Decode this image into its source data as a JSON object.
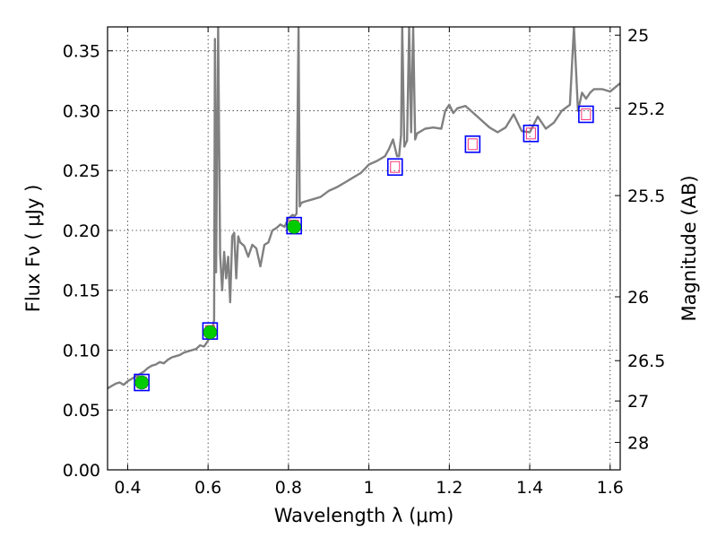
{
  "chart_data": {
    "type": "line",
    "xlabel": "Wavelength  λ (μm)",
    "ylabel": "Flux  Fν  ( μJy )",
    "y2label": "Magnitude (AB)",
    "xlim": [
      0.35,
      1.625
    ],
    "ylim": [
      0.0,
      0.37
    ],
    "grid": true,
    "x_ticks": [
      0.4,
      0.6,
      0.8,
      1.0,
      1.2,
      1.4,
      1.6
    ],
    "x_tick_labels": [
      "0.4",
      "0.6",
      "0.8",
      "1",
      "1.2",
      "1.4",
      "1.6"
    ],
    "y_ticks": [
      0.0,
      0.05,
      0.1,
      0.15,
      0.2,
      0.25,
      0.3,
      0.35
    ],
    "y_tick_labels": [
      "0.00",
      "0.05",
      "0.10",
      "0.15",
      "0.20",
      "0.25",
      "0.30",
      "0.35"
    ],
    "y2_ticks": [
      {
        "mag": 25,
        "label": "25"
      },
      {
        "mag": 25.2,
        "label": "25.2"
      },
      {
        "mag": 25.5,
        "label": "25.5"
      },
      {
        "mag": 26,
        "label": "26"
      },
      {
        "mag": 26.5,
        "label": "26.5"
      },
      {
        "mag": 27,
        "label": "27"
      },
      {
        "mag": 28,
        "label": "28"
      }
    ],
    "colors": {
      "spectrum": "#808080",
      "observed": "#00cc00",
      "model_box": "#0000ff",
      "model_inner": "#ff3377",
      "grid": "#000000"
    },
    "series": [
      {
        "kind": "spectrum",
        "x": [
          0.35,
          0.36,
          0.37,
          0.38,
          0.39,
          0.4,
          0.41,
          0.42,
          0.43,
          0.44,
          0.45,
          0.46,
          0.47,
          0.48,
          0.49,
          0.5,
          0.51,
          0.52,
          0.53,
          0.54,
          0.55,
          0.56,
          0.57,
          0.58,
          0.59,
          0.6,
          0.605,
          0.61,
          0.615,
          0.617,
          0.62,
          0.625,
          0.63,
          0.635,
          0.64,
          0.645,
          0.65,
          0.655,
          0.66,
          0.665,
          0.67,
          0.675,
          0.68,
          0.69,
          0.7,
          0.71,
          0.72,
          0.73,
          0.74,
          0.75,
          0.76,
          0.77,
          0.78,
          0.79,
          0.8,
          0.81,
          0.815,
          0.82,
          0.825,
          0.828,
          0.832,
          0.84,
          0.86,
          0.88,
          0.9,
          0.92,
          0.94,
          0.96,
          0.98,
          1.0,
          1.02,
          1.04,
          1.05,
          1.06,
          1.07,
          1.075,
          1.08,
          1.083,
          1.088,
          1.095,
          1.1,
          1.105,
          1.11,
          1.115,
          1.12,
          1.14,
          1.16,
          1.18,
          1.19,
          1.2,
          1.21,
          1.22,
          1.24,
          1.26,
          1.28,
          1.3,
          1.32,
          1.34,
          1.36,
          1.38,
          1.4,
          1.42,
          1.44,
          1.46,
          1.48,
          1.5,
          1.51,
          1.52,
          1.53,
          1.54,
          1.55,
          1.56,
          1.58,
          1.6,
          1.625
        ],
        "y": [
          0.068,
          0.07,
          0.072,
          0.073,
          0.071,
          0.074,
          0.076,
          0.078,
          0.08,
          0.082,
          0.085,
          0.087,
          0.088,
          0.09,
          0.089,
          0.092,
          0.094,
          0.095,
          0.096,
          0.098,
          0.099,
          0.1,
          0.101,
          0.104,
          0.103,
          0.108,
          0.113,
          0.117,
          0.125,
          0.36,
          0.165,
          0.37,
          0.18,
          0.15,
          0.182,
          0.16,
          0.178,
          0.14,
          0.195,
          0.198,
          0.16,
          0.195,
          0.19,
          0.187,
          0.178,
          0.188,
          0.185,
          0.17,
          0.188,
          0.19,
          0.2,
          0.202,
          0.205,
          0.203,
          0.21,
          0.213,
          0.212,
          0.214,
          0.37,
          0.22,
          0.223,
          0.224,
          0.226,
          0.228,
          0.233,
          0.236,
          0.24,
          0.244,
          0.248,
          0.255,
          0.258,
          0.262,
          0.268,
          0.276,
          0.262,
          0.262,
          0.28,
          0.37,
          0.27,
          0.275,
          0.37,
          0.282,
          0.37,
          0.276,
          0.281,
          0.285,
          0.286,
          0.285,
          0.3,
          0.305,
          0.298,
          0.302,
          0.304,
          0.298,
          0.292,
          0.286,
          0.282,
          0.286,
          0.297,
          0.283,
          0.282,
          0.295,
          0.285,
          0.29,
          0.3,
          0.305,
          0.37,
          0.3,
          0.315,
          0.31,
          0.315,
          0.318,
          0.318,
          0.316,
          0.323
        ]
      },
      {
        "kind": "observed",
        "x": [
          0.435,
          0.605,
          0.814
        ],
        "y": [
          0.073,
          0.115,
          0.203
        ],
        "yerr": [
          0.003,
          0.004,
          0.004
        ]
      },
      {
        "kind": "model",
        "x": [
          0.435,
          0.605,
          0.814,
          1.065,
          1.258,
          1.403,
          1.54
        ],
        "y": [
          0.073,
          0.116,
          0.204,
          0.253,
          0.272,
          0.281,
          0.297
        ]
      }
    ]
  }
}
